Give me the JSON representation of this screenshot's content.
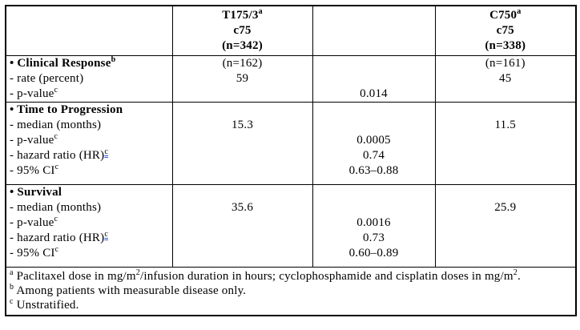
{
  "table": {
    "header": {
      "label": "",
      "arm1": "T175/3^{a}\nc75\n(n=342)",
      "mid": "",
      "arm2": "C750^{a}\nc75\n(n=338)"
    },
    "sections": [
      {
        "name": "clinical-response",
        "rows": [
          {
            "label": "• Clinical Response^{b}",
            "arm1": "(n=162)",
            "mid": "",
            "arm2": "(n=161)"
          },
          {
            "label": "- rate (percent)",
            "arm1": "59",
            "mid": "",
            "arm2": "45"
          },
          {
            "label": "- p-value^{c}",
            "arm1": "",
            "mid": "0.014",
            "arm2": ""
          }
        ]
      },
      {
        "name": "time-to-progression",
        "rows": [
          {
            "label": "• Time to Progression",
            "arm1": "",
            "mid": "",
            "arm2": ""
          },
          {
            "label": "- median (months)",
            "arm1": "15.3",
            "mid": "",
            "arm2": "11.5"
          },
          {
            "label": "- p-value^{c}",
            "arm1": "",
            "mid": "0.0005",
            "arm2": ""
          },
          {
            "label": "- hazard ratio (HR)^^{c}",
            "arm1": "",
            "mid": "0.74",
            "arm2": ""
          },
          {
            "label": "- 95% CI^{c}",
            "arm1": "",
            "mid": "0.63–0.88",
            "arm2": ""
          }
        ]
      },
      {
        "name": "survival",
        "rows": [
          {
            "label": "• Survival",
            "arm1": "",
            "mid": "",
            "arm2": ""
          },
          {
            "label": "- median (months)",
            "arm1": "35.6",
            "mid": "",
            "arm2": "25.9"
          },
          {
            "label": "- p-value^{c}",
            "arm1": "",
            "mid": "0.0016",
            "arm2": ""
          },
          {
            "label": "- hazard ratio (HR)^^{c}",
            "arm1": "",
            "mid": "0.73",
            "arm2": ""
          },
          {
            "label": "- 95% CI^{c}",
            "arm1": "",
            "mid": "0.60–0.89",
            "arm2": ""
          }
        ]
      }
    ],
    "footnotes": [
      "^{a} Paclitaxel dose in mg/m^{2}/infusion duration in hours; cyclophosphamide and cisplatin  doses in mg/m^{2}.",
      "^{b} Among patients with measurable disease only.",
      "^{c} Unstratified."
    ]
  }
}
